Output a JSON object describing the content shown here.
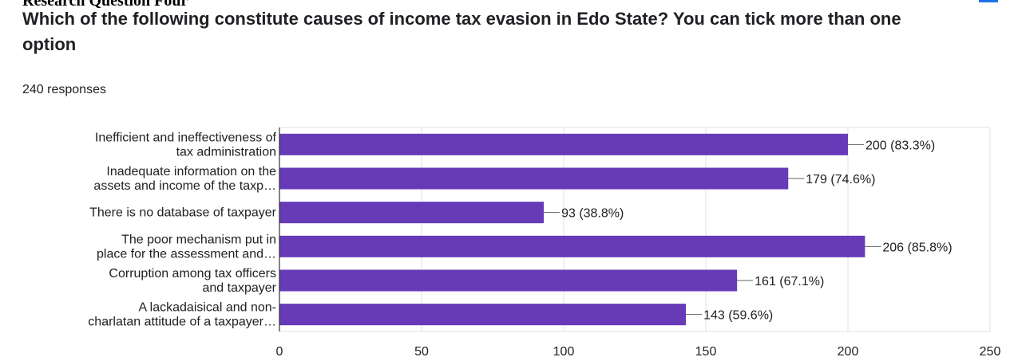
{
  "page": {
    "heading": "Research Question Four",
    "question": "Which of the following constitute causes of income tax evasion in Edo State? You can tick more than one option",
    "response_count": "240 responses",
    "accent_color": "#1a73e8"
  },
  "chart_data": {
    "type": "bar",
    "orientation": "horizontal",
    "categories": [
      [
        "Inefficient and ineffectiveness of",
        "tax administration"
      ],
      [
        "Inadequate information on the",
        "assets and income of the taxp…"
      ],
      [
        "There is no database of taxpayer"
      ],
      [
        "The poor mechanism put in",
        "place for the assessment and…"
      ],
      [
        "Corruption among tax officers",
        "and taxpayer"
      ],
      [
        "A lackadaisical and non-",
        "charlatan attitude of a taxpayer…"
      ]
    ],
    "values": [
      200,
      179,
      93,
      206,
      161,
      143
    ],
    "value_labels": [
      "200 (83.3%)",
      "179 (74.6%)",
      "93 (38.8%)",
      "206 (85.8%)",
      "161 (67.1%)",
      "143 (59.6%)"
    ],
    "xlim": [
      0,
      250
    ],
    "xticks": [
      "0",
      "50",
      "100",
      "150",
      "200",
      "250"
    ],
    "bar_color": "#673ab7",
    "grid": true
  }
}
